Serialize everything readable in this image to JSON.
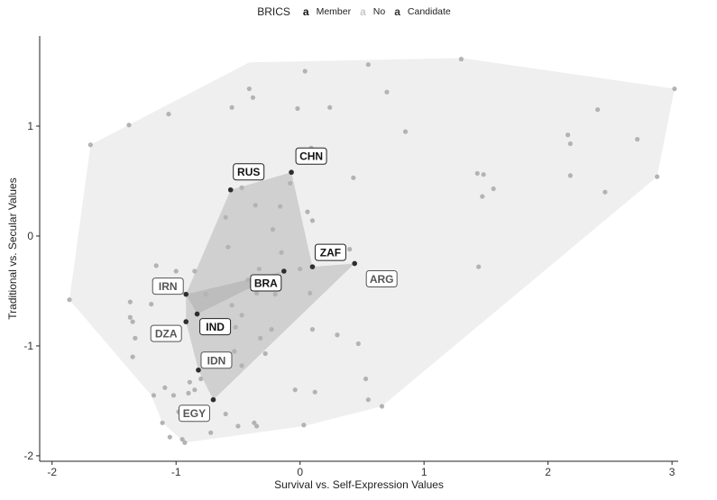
{
  "chart_data": {
    "type": "scatter",
    "xlabel": "Survival vs. Self-Expression Values",
    "ylabel": "Traditional vs. Secular Values",
    "xlim": [
      -2.1,
      3.05
    ],
    "ylim": [
      -2.05,
      1.82
    ],
    "xticks": [
      -2,
      -1,
      0,
      1,
      2,
      3
    ],
    "yticks": [
      -2,
      -1,
      0,
      1
    ],
    "grid": false,
    "legend": {
      "title": "BRICS",
      "placement": "top",
      "key_glyph": "a",
      "entries": [
        {
          "name": "Member",
          "color": "#111111"
        },
        {
          "name": "No",
          "color": "#c8c8c8"
        },
        {
          "name": "Candidate",
          "color": "#333333"
        }
      ]
    },
    "colors": {
      "no_point": "#b3b3b3",
      "member_point": "#2e2e2e",
      "outer_hull": "#efefef",
      "brics_hull": "#d0d0d0"
    },
    "labeled_points": [
      {
        "label": "RUS",
        "x": -0.56,
        "y": 0.42,
        "group": "Member"
      },
      {
        "label": "CHN",
        "x": -0.07,
        "y": 0.58,
        "group": "Member"
      },
      {
        "label": "ZAF",
        "x": 0.1,
        "y": -0.28,
        "group": "Member"
      },
      {
        "label": "BRA",
        "x": -0.13,
        "y": -0.32,
        "group": "Member"
      },
      {
        "label": "IND",
        "x": -0.83,
        "y": -0.71,
        "group": "Member"
      },
      {
        "label": "ARG",
        "x": 0.44,
        "y": -0.25,
        "group": "Candidate"
      },
      {
        "label": "IRN",
        "x": -0.92,
        "y": -0.53,
        "group": "Candidate"
      },
      {
        "label": "DZA",
        "x": -0.92,
        "y": -0.78,
        "group": "Candidate"
      },
      {
        "label": "IDN",
        "x": -0.82,
        "y": -1.22,
        "group": "Candidate"
      },
      {
        "label": "EGY",
        "x": -0.7,
        "y": -1.49,
        "group": "Candidate"
      }
    ],
    "other_points": [
      [
        -1.86,
        -0.58
      ],
      [
        -1.69,
        0.83
      ],
      [
        -1.38,
        1.01
      ],
      [
        -1.35,
        -0.78
      ],
      [
        -1.33,
        -0.93
      ],
      [
        -1.37,
        -0.6
      ],
      [
        -1.37,
        -0.74
      ],
      [
        -1.2,
        -0.62
      ],
      [
        -1.18,
        -1.45
      ],
      [
        -1.09,
        -1.38
      ],
      [
        -1.11,
        -1.7
      ],
      [
        -1.05,
        -1.83
      ],
      [
        -1.02,
        -1.45
      ],
      [
        -0.98,
        -1.6
      ],
      [
        -0.93,
        -1.88
      ],
      [
        -0.95,
        -1.85
      ],
      [
        -0.89,
        -1.33
      ],
      [
        -0.85,
        -1.4
      ],
      [
        -0.8,
        -1.3
      ],
      [
        -1.06,
        1.11
      ],
      [
        -0.85,
        -0.32
      ],
      [
        -0.76,
        -0.53
      ],
      [
        -0.64,
        -0.83
      ],
      [
        -0.6,
        0.17
      ],
      [
        -0.58,
        -0.1
      ],
      [
        -0.55,
        -0.63
      ],
      [
        -0.55,
        1.17
      ],
      [
        -0.53,
        -1.05
      ],
      [
        -0.47,
        0.44
      ],
      [
        -0.47,
        -0.72
      ],
      [
        -0.43,
        0.58
      ],
      [
        -0.42,
        -0.4
      ],
      [
        -0.41,
        1.34
      ],
      [
        -0.36,
        0.28
      ],
      [
        -0.35,
        -0.52
      ],
      [
        -0.33,
        -0.3
      ],
      [
        -0.32,
        -0.93
      ],
      [
        -0.38,
        1.26
      ],
      [
        -0.28,
        -1.07
      ],
      [
        -0.23,
        -0.85
      ],
      [
        -0.22,
        0.06
      ],
      [
        -0.2,
        -0.53
      ],
      [
        -0.16,
        0.27
      ],
      [
        -0.15,
        -0.15
      ],
      [
        -0.08,
        0.48
      ],
      [
        -0.04,
        -1.4
      ],
      [
        -0.02,
        1.16
      ],
      [
        0.0,
        -0.3
      ],
      [
        0.03,
        -1.72
      ],
      [
        0.04,
        1.5
      ],
      [
        0.06,
        0.22
      ],
      [
        0.08,
        -0.52
      ],
      [
        0.09,
        0.8
      ],
      [
        0.1,
        -0.85
      ],
      [
        0.1,
        0.14
      ],
      [
        0.12,
        -1.42
      ],
      [
        0.24,
        1.17
      ],
      [
        0.25,
        -0.12
      ],
      [
        0.3,
        -0.9
      ],
      [
        0.4,
        -0.12
      ],
      [
        0.43,
        0.53
      ],
      [
        0.47,
        -0.98
      ],
      [
        0.53,
        -1.3
      ],
      [
        0.55,
        1.56
      ],
      [
        0.55,
        -1.49
      ],
      [
        0.66,
        -1.55
      ],
      [
        0.7,
        1.31
      ],
      [
        0.85,
        0.95
      ],
      [
        -0.35,
        -1.73
      ],
      [
        -0.37,
        -1.7
      ],
      [
        -0.5,
        -1.73
      ],
      [
        -0.72,
        -1.79
      ],
      [
        -1.35,
        -1.1
      ],
      [
        -1.16,
        -0.27
      ],
      [
        -1.0,
        -0.32
      ],
      [
        1.3,
        1.61
      ],
      [
        1.43,
        0.57
      ],
      [
        1.47,
        0.36
      ],
      [
        1.48,
        0.56
      ],
      [
        1.56,
        0.43
      ],
      [
        1.44,
        -0.28
      ],
      [
        2.16,
        0.92
      ],
      [
        2.18,
        0.84
      ],
      [
        2.18,
        0.55
      ],
      [
        2.4,
        1.15
      ],
      [
        2.46,
        0.4
      ],
      [
        2.72,
        0.88
      ],
      [
        2.88,
        0.54
      ],
      [
        3.02,
        1.34
      ],
      [
        -0.52,
        -0.83
      ],
      [
        -0.47,
        -1.18
      ],
      [
        -0.6,
        -1.62
      ],
      [
        -0.85,
        -1.65
      ],
      [
        -0.9,
        -1.43
      ]
    ],
    "outer_hull": [
      [
        -0.41,
        1.58
      ],
      [
        1.3,
        1.62
      ],
      [
        3.02,
        1.34
      ],
      [
        2.88,
        0.54
      ],
      [
        0.66,
        -1.55
      ],
      [
        0.03,
        -1.73
      ],
      [
        -0.93,
        -1.88
      ],
      [
        -1.11,
        -1.7
      ],
      [
        -1.2,
        -1.45
      ],
      [
        -1.86,
        -0.58
      ],
      [
        -1.69,
        0.83
      ]
    ],
    "brics_hull": [
      [
        -0.56,
        0.42
      ],
      [
        -0.07,
        0.58
      ],
      [
        0.1,
        -0.28
      ],
      [
        0.44,
        -0.25
      ],
      [
        -0.7,
        -1.49
      ],
      [
        -0.82,
        -1.22
      ],
      [
        -0.92,
        -0.78
      ],
      [
        -0.92,
        -0.53
      ]
    ],
    "member_triangle": [
      [
        -0.92,
        -0.53
      ],
      [
        -0.13,
        -0.32
      ],
      [
        -0.83,
        -0.71
      ]
    ]
  }
}
